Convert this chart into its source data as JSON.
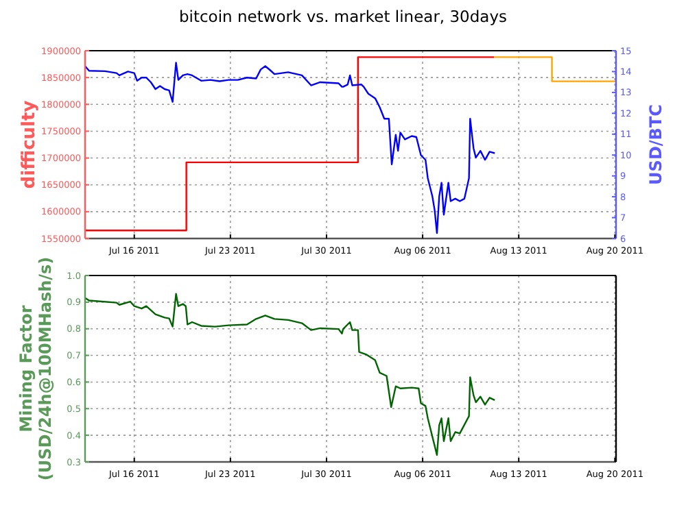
{
  "chart_data": [
    {
      "type": "line",
      "title": "bitcoin network vs. market linear, 30days",
      "ylabel": "difficulty",
      "y2label": "USD/BTC",
      "grid": true,
      "xlim": [
        "2011-07-12T10:00",
        "2011-08-20T02:00"
      ],
      "xticks": [
        {
          "value": "2011-07-16",
          "label": "Jul 16 2011"
        },
        {
          "value": "2011-07-23",
          "label": "Jul 23 2011"
        },
        {
          "value": "2011-07-30",
          "label": "Jul 30 2011"
        },
        {
          "value": "2011-08-06",
          "label": "Aug 06 2011"
        },
        {
          "value": "2011-08-13",
          "label": "Aug 13 2011"
        },
        {
          "value": "2011-08-20",
          "label": "Aug 20 2011"
        }
      ],
      "ylim": [
        1550000,
        1900000
      ],
      "yticks": [
        1550000,
        1600000,
        1650000,
        1700000,
        1750000,
        1800000,
        1850000,
        1900000
      ],
      "y2lim": [
        6,
        15
      ],
      "y2ticks": [
        6,
        7,
        8,
        9,
        10,
        11,
        12,
        13,
        14,
        15
      ],
      "series": [
        {
          "type": "step",
          "color": "#ff0000",
          "x": [
            "2011-07-12T10:00",
            "2011-07-19T19:00",
            "2011-08-01T07:00",
            "2011-08-11T05:00"
          ],
          "values": [
            1565000,
            1692000,
            1888000,
            1888000
          ]
        },
        {
          "type": "step",
          "color": "#ffa500",
          "x": [
            "2011-08-11T05:00",
            "2011-08-15T10:00",
            "2011-08-20T02:00"
          ],
          "values": [
            1888000,
            1843000,
            1843000
          ]
        },
        {
          "type": "line",
          "axis": "y2",
          "color": "#0000ff",
          "x": [
            "2011-07-12T10:00",
            "2011-07-12T17:00",
            "2011-07-13T21:00",
            "2011-07-14T17:00",
            "2011-07-14T22:00",
            "2011-07-15T13:00",
            "2011-07-16T00:00",
            "2011-07-16T05:00",
            "2011-07-16T13:00",
            "2011-07-16T21:00",
            "2011-07-17T05:00",
            "2011-07-17T13:00",
            "2011-07-17T21:00",
            "2011-07-18T05:00",
            "2011-07-18T13:00",
            "2011-07-18T19:00",
            "2011-07-19T01:00",
            "2011-07-19T05:00",
            "2011-07-19T13:00",
            "2011-07-19T21:00",
            "2011-07-20T05:00",
            "2011-07-20T21:00",
            "2011-07-21T13:00",
            "2011-07-22T05:00",
            "2011-07-22T21:00",
            "2011-07-23T13:00",
            "2011-07-24T05:00",
            "2011-07-24T21:00",
            "2011-07-25T05:00",
            "2011-07-25T13:00",
            "2011-07-25T21:00",
            "2011-07-26T05:00",
            "2011-07-27T05:00",
            "2011-07-28T05:00",
            "2011-07-28T21:00",
            "2011-07-29T13:00",
            "2011-07-30T21:00",
            "2011-07-31T03:00",
            "2011-07-31T05:00",
            "2011-07-31T13:00",
            "2011-07-31T17:00",
            "2011-07-31T21:00",
            "2011-08-01T13:00",
            "2011-08-01T17:00",
            "2011-08-02T01:00",
            "2011-08-02T13:00",
            "2011-08-02T21:00",
            "2011-08-03T05:00",
            "2011-08-03T13:00",
            "2011-08-03T18:00",
            "2011-08-04T01:00",
            "2011-08-04T05:00",
            "2011-08-04T09:00",
            "2011-08-04T17:00",
            "2011-08-05T05:00",
            "2011-08-05T13:00",
            "2011-08-05T21:00",
            "2011-08-06T05:00",
            "2011-08-06T09:00",
            "2011-08-06T17:00",
            "2011-08-06T21:00",
            "2011-08-07T01:00",
            "2011-08-07T05:00",
            "2011-08-07T09:00",
            "2011-08-07T13:00",
            "2011-08-07T21:00",
            "2011-08-08T01:00",
            "2011-08-08T09:00",
            "2011-08-08T17:00",
            "2011-08-09T01:00",
            "2011-08-09T09:00",
            "2011-08-09T11:00",
            "2011-08-09T17:00",
            "2011-08-09T21:00",
            "2011-08-10T05:00",
            "2011-08-10T13:00",
            "2011-08-10T21:00",
            "2011-08-11T06:00"
          ],
          "values": [
            14.26,
            14.04,
            14.02,
            13.93,
            13.82,
            14.0,
            13.93,
            13.56,
            13.71,
            13.71,
            13.49,
            13.16,
            13.31,
            13.16,
            13.1,
            12.55,
            14.43,
            13.6,
            13.82,
            13.88,
            13.82,
            13.56,
            13.6,
            13.54,
            13.6,
            13.6,
            13.71,
            13.67,
            14.1,
            14.26,
            14.08,
            13.88,
            13.97,
            13.82,
            13.34,
            13.49,
            13.44,
            13.27,
            13.27,
            13.38,
            13.82,
            13.34,
            13.38,
            13.27,
            12.94,
            12.72,
            12.29,
            11.74,
            11.74,
            9.55,
            10.97,
            10.2,
            11.08,
            10.75,
            10.91,
            10.86,
            9.99,
            9.77,
            8.89,
            8.02,
            7.36,
            6.26,
            8.02,
            8.67,
            7.14,
            8.67,
            7.79,
            7.91,
            7.79,
            7.91,
            8.89,
            11.74,
            10.32,
            9.88,
            10.2,
            9.77,
            10.16,
            10.09
          ]
        }
      ]
    },
    {
      "type": "line",
      "ylabel": "Mining Factor\n(USD/24h@100MHash/s)",
      "grid": true,
      "xlim": [
        "2011-07-12T10:00",
        "2011-08-20T02:00"
      ],
      "xticks": [
        {
          "value": "2011-07-16",
          "label": "Jul 16 2011"
        },
        {
          "value": "2011-07-23",
          "label": "Jul 23 2011"
        },
        {
          "value": "2011-07-30",
          "label": "Jul 30 2011"
        },
        {
          "value": "2011-08-06",
          "label": "Aug 06 2011"
        },
        {
          "value": "2011-08-13",
          "label": "Aug 13 2011"
        },
        {
          "value": "2011-08-20",
          "label": "Aug 20 2011"
        }
      ],
      "ylim": [
        0.3,
        1.0
      ],
      "yticks": [
        0.3,
        0.4,
        0.5,
        0.6,
        0.7,
        0.8,
        0.9,
        {
          "value": 1.0,
          "label": "1.0"
        }
      ],
      "series": [
        {
          "type": "line",
          "color": "#006400",
          "x": [
            "2011-07-12T10:00",
            "2011-07-12T17:00",
            "2011-07-14T17:00",
            "2011-07-14T22:00",
            "2011-07-15T17:00",
            "2011-07-16T00:00",
            "2011-07-16T13:00",
            "2011-07-16T21:00",
            "2011-07-17T13:00",
            "2011-07-18T05:00",
            "2011-07-18T13:00",
            "2011-07-18T19:00",
            "2011-07-19T01:00",
            "2011-07-19T05:00",
            "2011-07-19T13:00",
            "2011-07-19T18:00",
            "2011-07-19T21:00",
            "2011-07-20T05:00",
            "2011-07-20T21:00",
            "2011-07-21T21:00",
            "2011-07-22T21:00",
            "2011-07-24T05:00",
            "2011-07-24T21:00",
            "2011-07-25T13:00",
            "2011-07-26T05:00",
            "2011-07-27T05:00",
            "2011-07-28T05:00",
            "2011-07-28T21:00",
            "2011-07-29T13:00",
            "2011-07-30T21:00",
            "2011-07-31T03:00",
            "2011-07-31T05:00",
            "2011-07-31T17:00",
            "2011-07-31T21:00",
            "2011-08-01T07:00",
            "2011-08-01T09:00",
            "2011-08-01T21:00",
            "2011-08-02T13:00",
            "2011-08-02T21:00",
            "2011-08-03T09:00",
            "2011-08-03T17:00",
            "2011-08-04T01:00",
            "2011-08-04T09:00",
            "2011-08-05T05:00",
            "2011-08-05T17:00",
            "2011-08-05T21:00",
            "2011-08-06T05:00",
            "2011-08-06T09:00",
            "2011-08-06T17:00",
            "2011-08-07T01:00",
            "2011-08-07T05:00",
            "2011-08-07T09:00",
            "2011-08-07T13:00",
            "2011-08-07T21:00",
            "2011-08-08T01:00",
            "2011-08-08T09:00",
            "2011-08-08T17:00",
            "2011-08-09T09:00",
            "2011-08-09T11:00",
            "2011-08-09T17:00",
            "2011-08-09T21:00",
            "2011-08-10T05:00",
            "2011-08-10T13:00",
            "2011-08-10T21:00",
            "2011-08-11T06:00"
          ],
          "values": [
            0.916,
            0.906,
            0.898,
            0.89,
            0.902,
            0.885,
            0.876,
            0.885,
            0.854,
            0.842,
            0.839,
            0.808,
            0.931,
            0.885,
            0.893,
            0.885,
            0.816,
            0.825,
            0.811,
            0.808,
            0.813,
            0.816,
            0.837,
            0.85,
            0.837,
            0.833,
            0.821,
            0.795,
            0.802,
            0.799,
            0.782,
            0.799,
            0.825,
            0.795,
            0.795,
            0.713,
            0.704,
            0.682,
            0.635,
            0.623,
            0.506,
            0.584,
            0.576,
            0.579,
            0.576,
            0.52,
            0.51,
            0.464,
            0.395,
            0.326,
            0.438,
            0.464,
            0.378,
            0.464,
            0.378,
            0.412,
            0.407,
            0.472,
            0.618,
            0.55,
            0.524,
            0.545,
            0.515,
            0.541,
            0.532
          ]
        }
      ]
    }
  ]
}
